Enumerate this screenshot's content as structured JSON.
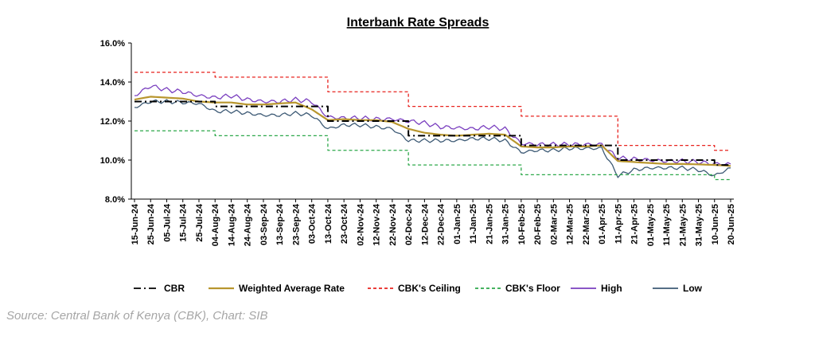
{
  "chart_data": {
    "type": "line",
    "title": "Interbank Rate Spreads",
    "xlabel": "",
    "ylabel": "",
    "ylim": [
      8,
      16
    ],
    "yticks": [
      "8.0%",
      "10.0%",
      "12.0%",
      "14.0%",
      "16.0%"
    ],
    "ytick_values": [
      8,
      10,
      12,
      14,
      16
    ],
    "grid": false,
    "legend_position": "bottom",
    "x": [
      "15-Jun-24",
      "25-Jun-24",
      "05-Jul-24",
      "15-Jul-24",
      "25-Jul-24",
      "04-Aug-24",
      "14-Aug-24",
      "24-Aug-24",
      "03-Sep-24",
      "13-Sep-24",
      "23-Sep-24",
      "03-Oct-24",
      "13-Oct-24",
      "23-Oct-24",
      "02-Nov-24",
      "12-Nov-24",
      "22-Nov-24",
      "02-Dec-24",
      "12-Dec-24",
      "22-Dec-24",
      "01-Jan-25",
      "11-Jan-25",
      "21-Jan-25",
      "31-Jan-25",
      "10-Feb-25",
      "20-Feb-25",
      "02-Mar-25",
      "12-Mar-25",
      "22-Mar-25",
      "01-Apr-25",
      "11-Apr-25",
      "21-Apr-25",
      "01-May-25",
      "11-May-25",
      "21-May-25",
      "31-May-25",
      "10-Jun-25",
      "20-Jun-25"
    ],
    "series": [
      {
        "name": "CBR",
        "color": "#000000",
        "dash": "long-dash-dot",
        "values": [
          13.0,
          13.0,
          13.0,
          13.0,
          13.0,
          12.75,
          12.75,
          12.75,
          12.75,
          12.75,
          12.75,
          12.75,
          12.0,
          12.0,
          12.0,
          12.0,
          12.0,
          11.25,
          11.25,
          11.25,
          11.25,
          11.25,
          11.25,
          11.25,
          10.75,
          10.75,
          10.75,
          10.75,
          10.75,
          10.75,
          10.0,
          10.0,
          10.0,
          10.0,
          10.0,
          10.0,
          9.75,
          9.75
        ]
      },
      {
        "name": "Weighted Average Rate",
        "color": "#b8962e",
        "dash": "solid",
        "values": [
          13.1,
          13.25,
          13.2,
          13.15,
          13.0,
          12.95,
          12.95,
          12.85,
          12.85,
          12.9,
          12.95,
          12.6,
          12.05,
          12.1,
          12.05,
          12.05,
          11.95,
          11.6,
          11.4,
          11.3,
          11.25,
          11.3,
          11.35,
          11.3,
          10.7,
          10.65,
          10.65,
          10.7,
          10.7,
          10.75,
          9.95,
          9.9,
          9.85,
          9.8,
          9.8,
          9.78,
          9.75,
          9.7
        ]
      },
      {
        "name": "CBK's Ceiling",
        "color": "#e8231f",
        "dash": "short-dash",
        "values": [
          14.5,
          14.5,
          14.5,
          14.5,
          14.5,
          14.25,
          14.25,
          14.25,
          14.25,
          14.25,
          14.25,
          14.25,
          13.5,
          13.5,
          13.5,
          13.5,
          13.5,
          12.75,
          12.75,
          12.75,
          12.75,
          12.75,
          12.75,
          12.75,
          12.25,
          12.25,
          12.25,
          12.25,
          12.25,
          12.25,
          10.75,
          10.75,
          10.75,
          10.75,
          10.75,
          10.75,
          10.5,
          10.5
        ]
      },
      {
        "name": "CBK's Floor",
        "color": "#2da84a",
        "dash": "short-dash",
        "values": [
          11.5,
          11.5,
          11.5,
          11.5,
          11.5,
          11.25,
          11.25,
          11.25,
          11.25,
          11.25,
          11.25,
          11.25,
          10.5,
          10.5,
          10.5,
          10.5,
          10.5,
          9.75,
          9.75,
          9.75,
          9.75,
          9.75,
          9.75,
          9.75,
          9.25,
          9.25,
          9.25,
          9.25,
          9.25,
          9.25,
          9.25,
          9.25,
          9.25,
          9.25,
          9.25,
          9.25,
          9.0,
          9.0
        ]
      },
      {
        "name": "High",
        "color": "#7a3fbf",
        "dash": "solid",
        "values": [
          13.3,
          13.8,
          13.6,
          13.5,
          13.3,
          13.2,
          13.3,
          13.1,
          13.0,
          13.0,
          13.1,
          13.0,
          12.2,
          12.15,
          12.15,
          12.1,
          12.1,
          12.0,
          11.9,
          11.7,
          11.65,
          11.6,
          11.7,
          11.6,
          10.85,
          10.8,
          10.8,
          10.8,
          10.8,
          10.8,
          10.1,
          10.05,
          10.0,
          9.95,
          9.95,
          9.9,
          9.8,
          9.8
        ]
      },
      {
        "name": "Low",
        "color": "#3d5a75",
        "dash": "solid",
        "values": [
          12.7,
          13.0,
          13.0,
          12.95,
          12.9,
          12.5,
          12.5,
          12.4,
          12.3,
          12.3,
          12.4,
          12.3,
          11.6,
          11.8,
          11.8,
          11.7,
          11.6,
          11.0,
          11.0,
          11.0,
          11.0,
          11.1,
          11.1,
          11.0,
          10.4,
          10.5,
          10.5,
          10.6,
          10.6,
          10.6,
          9.2,
          9.5,
          9.6,
          9.6,
          9.6,
          9.5,
          9.2,
          9.6
        ]
      }
    ]
  },
  "source_text": "Source: Central Bank of Kenya (CBK), Chart: SIB"
}
